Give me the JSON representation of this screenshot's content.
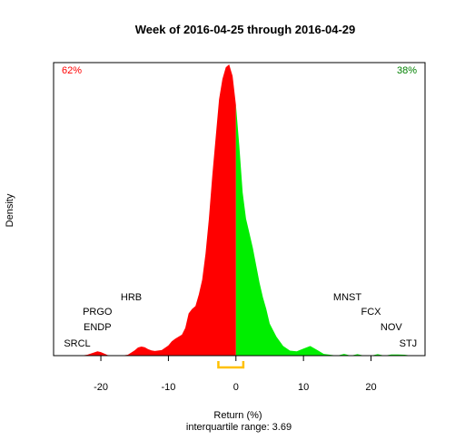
{
  "chart_data": {
    "type": "area",
    "title": "Week of 2016-04-25 through 2016-04-29",
    "xlabel": "Return (%)",
    "ylabel": "Density",
    "subtitle": "interquartile range: 3.69",
    "xlim": [
      -27,
      28
    ],
    "x_ticks": [
      -20,
      -10,
      0,
      10,
      20
    ],
    "x_tick_labels": [
      "-20",
      "-10",
      "0",
      "10",
      "20"
    ],
    "split_at": 0,
    "negative_share": "62%",
    "positive_share": "38%",
    "colors": {
      "negative": "#ff0000",
      "positive": "#00ee00",
      "iqr": "#ffc000",
      "percent_left": "#ff0000",
      "percent_right": "#008000"
    },
    "interquartile": {
      "q1": -2.6,
      "q3": 1.09
    },
    "density": {
      "x": [
        -25,
        -23,
        -22,
        -21,
        -20.5,
        -20,
        -19,
        -18,
        -17,
        -16,
        -15,
        -14.5,
        -14,
        -13.5,
        -13,
        -12.5,
        -12,
        -11,
        -10,
        -9.5,
        -9,
        -8.5,
        -8,
        -7.5,
        -7,
        -6.5,
        -6,
        -5.5,
        -5,
        -4.5,
        -4,
        -3.5,
        -3,
        -2.5,
        -2,
        -1.5,
        -1,
        -0.5,
        0,
        0.5,
        1,
        1.5,
        2,
        2.5,
        3,
        3.5,
        4,
        4.5,
        5,
        6,
        7,
        8,
        9,
        10,
        11,
        12,
        13,
        15,
        16,
        17,
        18,
        19,
        20,
        21,
        22,
        23,
        24,
        25,
        26,
        27
      ],
      "y": [
        0.0,
        0.0,
        0.003,
        0.011,
        0.015,
        0.012,
        0.002,
        0.0,
        0.0,
        0.003,
        0.018,
        0.028,
        0.031,
        0.029,
        0.022,
        0.018,
        0.016,
        0.019,
        0.035,
        0.049,
        0.058,
        0.065,
        0.072,
        0.095,
        0.145,
        0.16,
        0.17,
        0.21,
        0.26,
        0.35,
        0.47,
        0.62,
        0.75,
        0.88,
        0.95,
        0.99,
        1.0,
        0.96,
        0.86,
        0.72,
        0.56,
        0.47,
        0.42,
        0.37,
        0.31,
        0.25,
        0.2,
        0.16,
        0.11,
        0.065,
        0.033,
        0.017,
        0.015,
        0.024,
        0.033,
        0.02,
        0.006,
        0.0,
        0.006,
        0.0,
        0.005,
        0.0,
        0.0,
        0.005,
        0.0,
        0.004,
        0.004,
        0.003,
        0.0,
        0.0
      ]
    },
    "stock_labels": [
      {
        "label": "HRB",
        "x": -15.5,
        "level": 4,
        "color": "#000000"
      },
      {
        "label": "PRGO",
        "x": -20.5,
        "level": 3,
        "color": "#000000"
      },
      {
        "label": "ENDP",
        "x": -20.5,
        "level": 2,
        "color": "#000000"
      },
      {
        "label": "SRCL",
        "x": -23.5,
        "level": 1,
        "color": "#000000"
      },
      {
        "label": "MNST",
        "x": 16.5,
        "level": 4,
        "color": "#000000"
      },
      {
        "label": "FCX",
        "x": 20,
        "level": 3,
        "color": "#000000"
      },
      {
        "label": "NOV",
        "x": 23,
        "level": 2,
        "color": "#000000"
      },
      {
        "label": "STJ",
        "x": 25.5,
        "level": 1,
        "color": "#000000"
      }
    ],
    "grid": false,
    "legend": "none"
  }
}
